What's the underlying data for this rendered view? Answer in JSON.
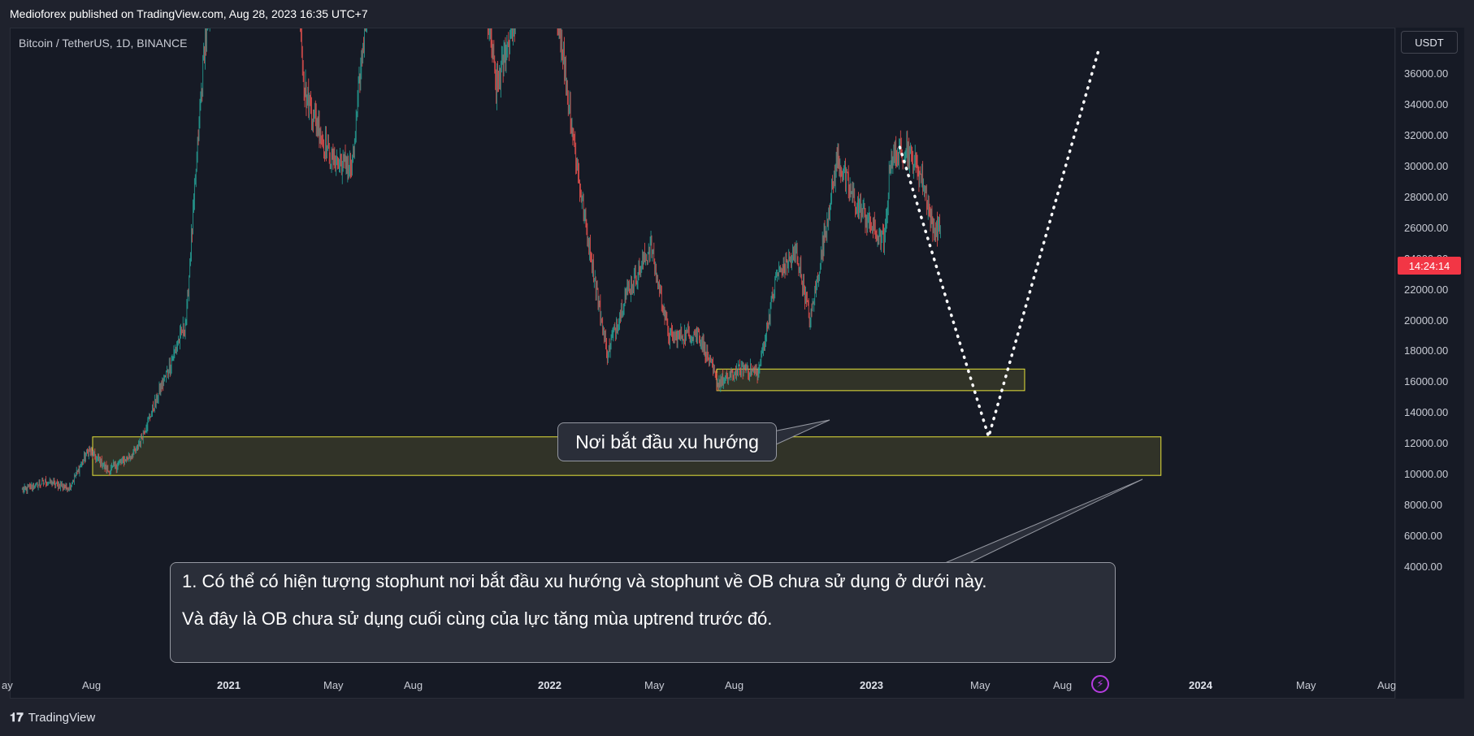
{
  "header": {
    "published_text": "Medioforex published on TradingView.com, Aug 28, 2023 16:35 UTC+7"
  },
  "chart": {
    "symbol_text": "Bitcoin / TetherUS, 1D, BINANCE",
    "currency": "USDT",
    "countdown": "14:24:14"
  },
  "annotations": {
    "trend_start": "Nơi bắt đầu xu hướng",
    "line1": "1. Có thể có hiện tượng stophunt nơi bắt đầu xu hướng và stophunt về OB chưa sử dụng ở dưới này.",
    "line2": "Và đây là OB chưa sử dụng cuối cùng của lực tăng mùa uptrend trước đó."
  },
  "footer": {
    "brand": "TradingView"
  },
  "colors": {
    "background": "#161a25",
    "up_candle": "#26a69a",
    "down_candle": "#ef5350",
    "zone_border": "#e6e23a",
    "price_tag": "#f23645"
  },
  "chart_data": {
    "type": "candlestick",
    "ylim": [
      3000,
      38000
    ],
    "y_ticks": [
      "36000.00",
      "34000.00",
      "32000.00",
      "30000.00",
      "28000.00",
      "26000.00",
      "24000.00",
      "22000.00",
      "20000.00",
      "18000.00",
      "16000.00",
      "14000.00",
      "12000.00",
      "10000.00",
      "8000.00",
      "6000.00",
      "4000.00"
    ],
    "x_ticks": [
      {
        "label": "ay",
        "year": false
      },
      {
        "label": "Aug",
        "year": false
      },
      {
        "label": "2021",
        "year": true
      },
      {
        "label": "May",
        "year": false
      },
      {
        "label": "Aug",
        "year": false
      },
      {
        "label": "2022",
        "year": true
      },
      {
        "label": "May",
        "year": false
      },
      {
        "label": "Aug",
        "year": false
      },
      {
        "label": "2023",
        "year": true
      },
      {
        "label": "May",
        "year": false
      },
      {
        "label": "Aug",
        "year": false
      },
      {
        "label": "2024",
        "year": true
      },
      {
        "label": "May",
        "year": false
      },
      {
        "label": "Aug",
        "year": false
      }
    ],
    "price_path": [
      [
        "2020-05-15",
        9000
      ],
      [
        "2020-06-15",
        9600
      ],
      [
        "2020-07-15",
        9200
      ],
      [
        "2020-08-10",
        11600
      ],
      [
        "2020-09-05",
        10300
      ],
      [
        "2020-10-10",
        11500
      ],
      [
        "2020-11-15",
        16000
      ],
      [
        "2020-12-15",
        20000
      ],
      [
        "2021-01-08",
        38000
      ],
      [
        "2021-02-15",
        48000
      ],
      [
        "2021-04-14",
        63000
      ],
      [
        "2021-05-19",
        35000
      ],
      [
        "2021-06-22",
        30500
      ],
      [
        "2021-07-20",
        30000
      ],
      [
        "2021-08-20",
        48000
      ],
      [
        "2021-11-10",
        67000
      ],
      [
        "2022-01-24",
        35000
      ],
      [
        "2022-03-28",
        47000
      ],
      [
        "2022-05-12",
        29000
      ],
      [
        "2022-06-18",
        17800
      ],
      [
        "2022-07-10",
        21500
      ],
      [
        "2022-08-14",
        24800
      ],
      [
        "2022-09-07",
        19000
      ],
      [
        "2022-10-15",
        19200
      ],
      [
        "2022-11-09",
        16000
      ],
      [
        "2022-12-15",
        17000
      ],
      [
        "2023-01-01",
        16600
      ],
      [
        "2023-01-25",
        23000
      ],
      [
        "2023-02-20",
        24500
      ],
      [
        "2023-03-10",
        20000
      ],
      [
        "2023-04-14",
        30500
      ],
      [
        "2023-05-10",
        27500
      ],
      [
        "2023-06-15",
        25000
      ],
      [
        "2023-06-23",
        30700
      ],
      [
        "2023-07-14",
        31200
      ],
      [
        "2023-08-05",
        29000
      ],
      [
        "2023-08-17",
        26000
      ],
      [
        "2023-08-28",
        26000
      ]
    ],
    "zones": [
      {
        "from": "2020-08-15",
        "to": "2024-06-10",
        "low": 10000,
        "high": 12500
      },
      {
        "from": "2022-11-08",
        "to": "2023-12-15",
        "low": 15500,
        "high": 16900
      }
    ],
    "projection": [
      [
        "2023-07-05",
        31300
      ],
      [
        "2023-10-29",
        12500
      ],
      [
        "2024-03-20",
        37500
      ]
    ]
  }
}
